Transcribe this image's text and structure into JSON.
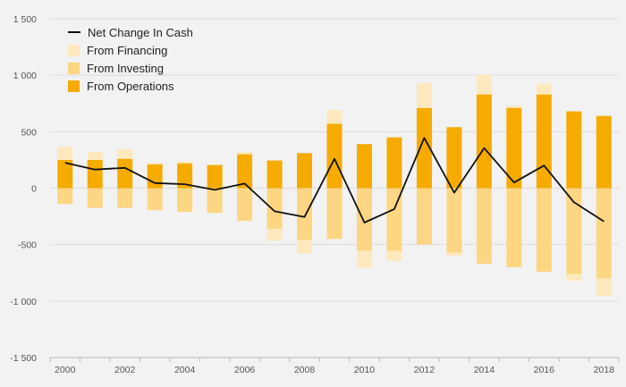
{
  "chart_data": {
    "type": "bar",
    "categories": [
      "2000",
      "2001",
      "2002",
      "2003",
      "2004",
      "2005",
      "2006",
      "2007",
      "2008",
      "2009",
      "2010",
      "2011",
      "2012",
      "2013",
      "2014",
      "2015",
      "2016",
      "2017",
      "2018"
    ],
    "series": [
      {
        "name": "From Operations",
        "color": "#f5ab00",
        "values": [
          250,
          250,
          260,
          210,
          220,
          205,
          300,
          245,
          310,
          570,
          390,
          450,
          710,
          540,
          830,
          710,
          830,
          680,
          640
        ]
      },
      {
        "name": "From Investing",
        "color": "#fcd682",
        "values": [
          -140,
          -175,
          -175,
          -195,
          -210,
          -220,
          -290,
          -360,
          -460,
          -450,
          -555,
          -555,
          -500,
          -570,
          -670,
          -700,
          -740,
          -760,
          -800
        ]
      },
      {
        "name": "From Financing",
        "color": "#fde9bd",
        "values": [
          115,
          70,
          85,
          15,
          15,
          0,
          20,
          -105,
          -120,
          120,
          -150,
          -90,
          220,
          -30,
          175,
          20,
          95,
          -60,
          -155
        ]
      },
      {
        "name": "Net Change In Cash",
        "type": "line",
        "color": "#111111",
        "values": [
          225,
          165,
          180,
          45,
          35,
          -15,
          40,
          -205,
          -255,
          260,
          -305,
          -185,
          445,
          -40,
          355,
          50,
          200,
          -125,
          -295
        ]
      }
    ],
    "legend": [
      "Net Change In Cash",
      "From Financing",
      "From Investing",
      "From Operations"
    ],
    "yticks": [
      1500,
      1000,
      500,
      0,
      -500,
      -1000,
      -1500
    ],
    "ytick_labels": [
      "1 500",
      "1 000",
      "500",
      "0",
      "-500",
      "-1 000",
      "-1 500"
    ],
    "xtick_labels": [
      "2000",
      "2002",
      "2004",
      "2006",
      "2008",
      "2010",
      "2012",
      "2014",
      "2016",
      "2018"
    ],
    "ylim": [
      -1500,
      1500
    ],
    "legend_position": "top-left",
    "grid": true
  }
}
